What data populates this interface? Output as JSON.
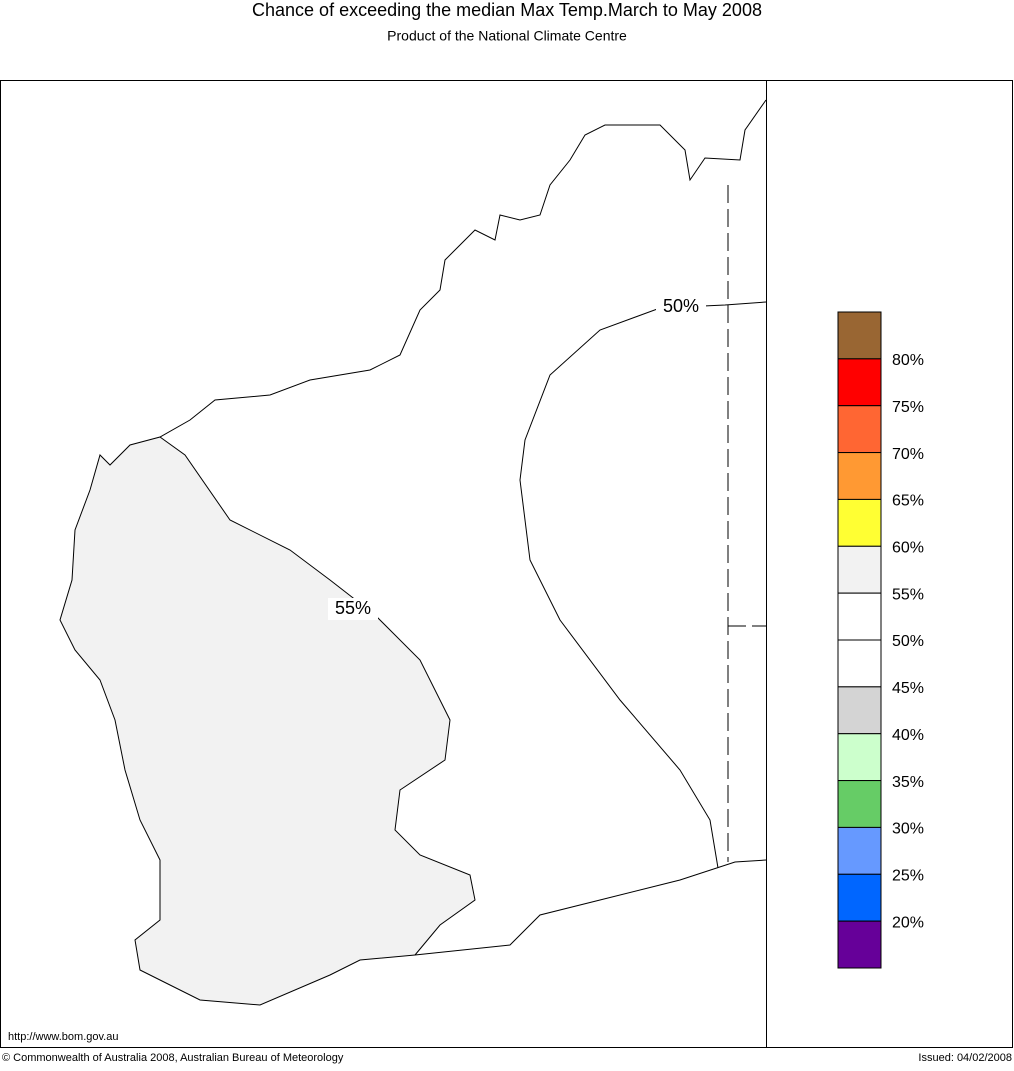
{
  "header": {
    "title": "Chance of exceeding the median Max Temp.March to May 2008",
    "subtitle": "Product of the National Climate Centre"
  },
  "map": {
    "contour_labels": [
      "50%",
      "55%"
    ],
    "url": "http://www.bom.gov.au"
  },
  "legend": {
    "colors": [
      "#996633",
      "#ff0000",
      "#ff6633",
      "#ff9933",
      "#ffff33",
      "#f2f2f2",
      "#ffffff",
      "#ffffff",
      "#d4d4d4",
      "#ccffcc",
      "#66cc66",
      "#6699ff",
      "#0066ff",
      "#660099"
    ],
    "labels": [
      "80%",
      "75%",
      "70%",
      "65%",
      "60%",
      "55%",
      "50%",
      "45%",
      "40%",
      "35%",
      "30%",
      "25%",
      "20%"
    ]
  },
  "footer": {
    "copyright": "© Commonwealth of Australia 2008, Australian Bureau of Meteorology",
    "issued": "Issued: 04/02/2008"
  }
}
